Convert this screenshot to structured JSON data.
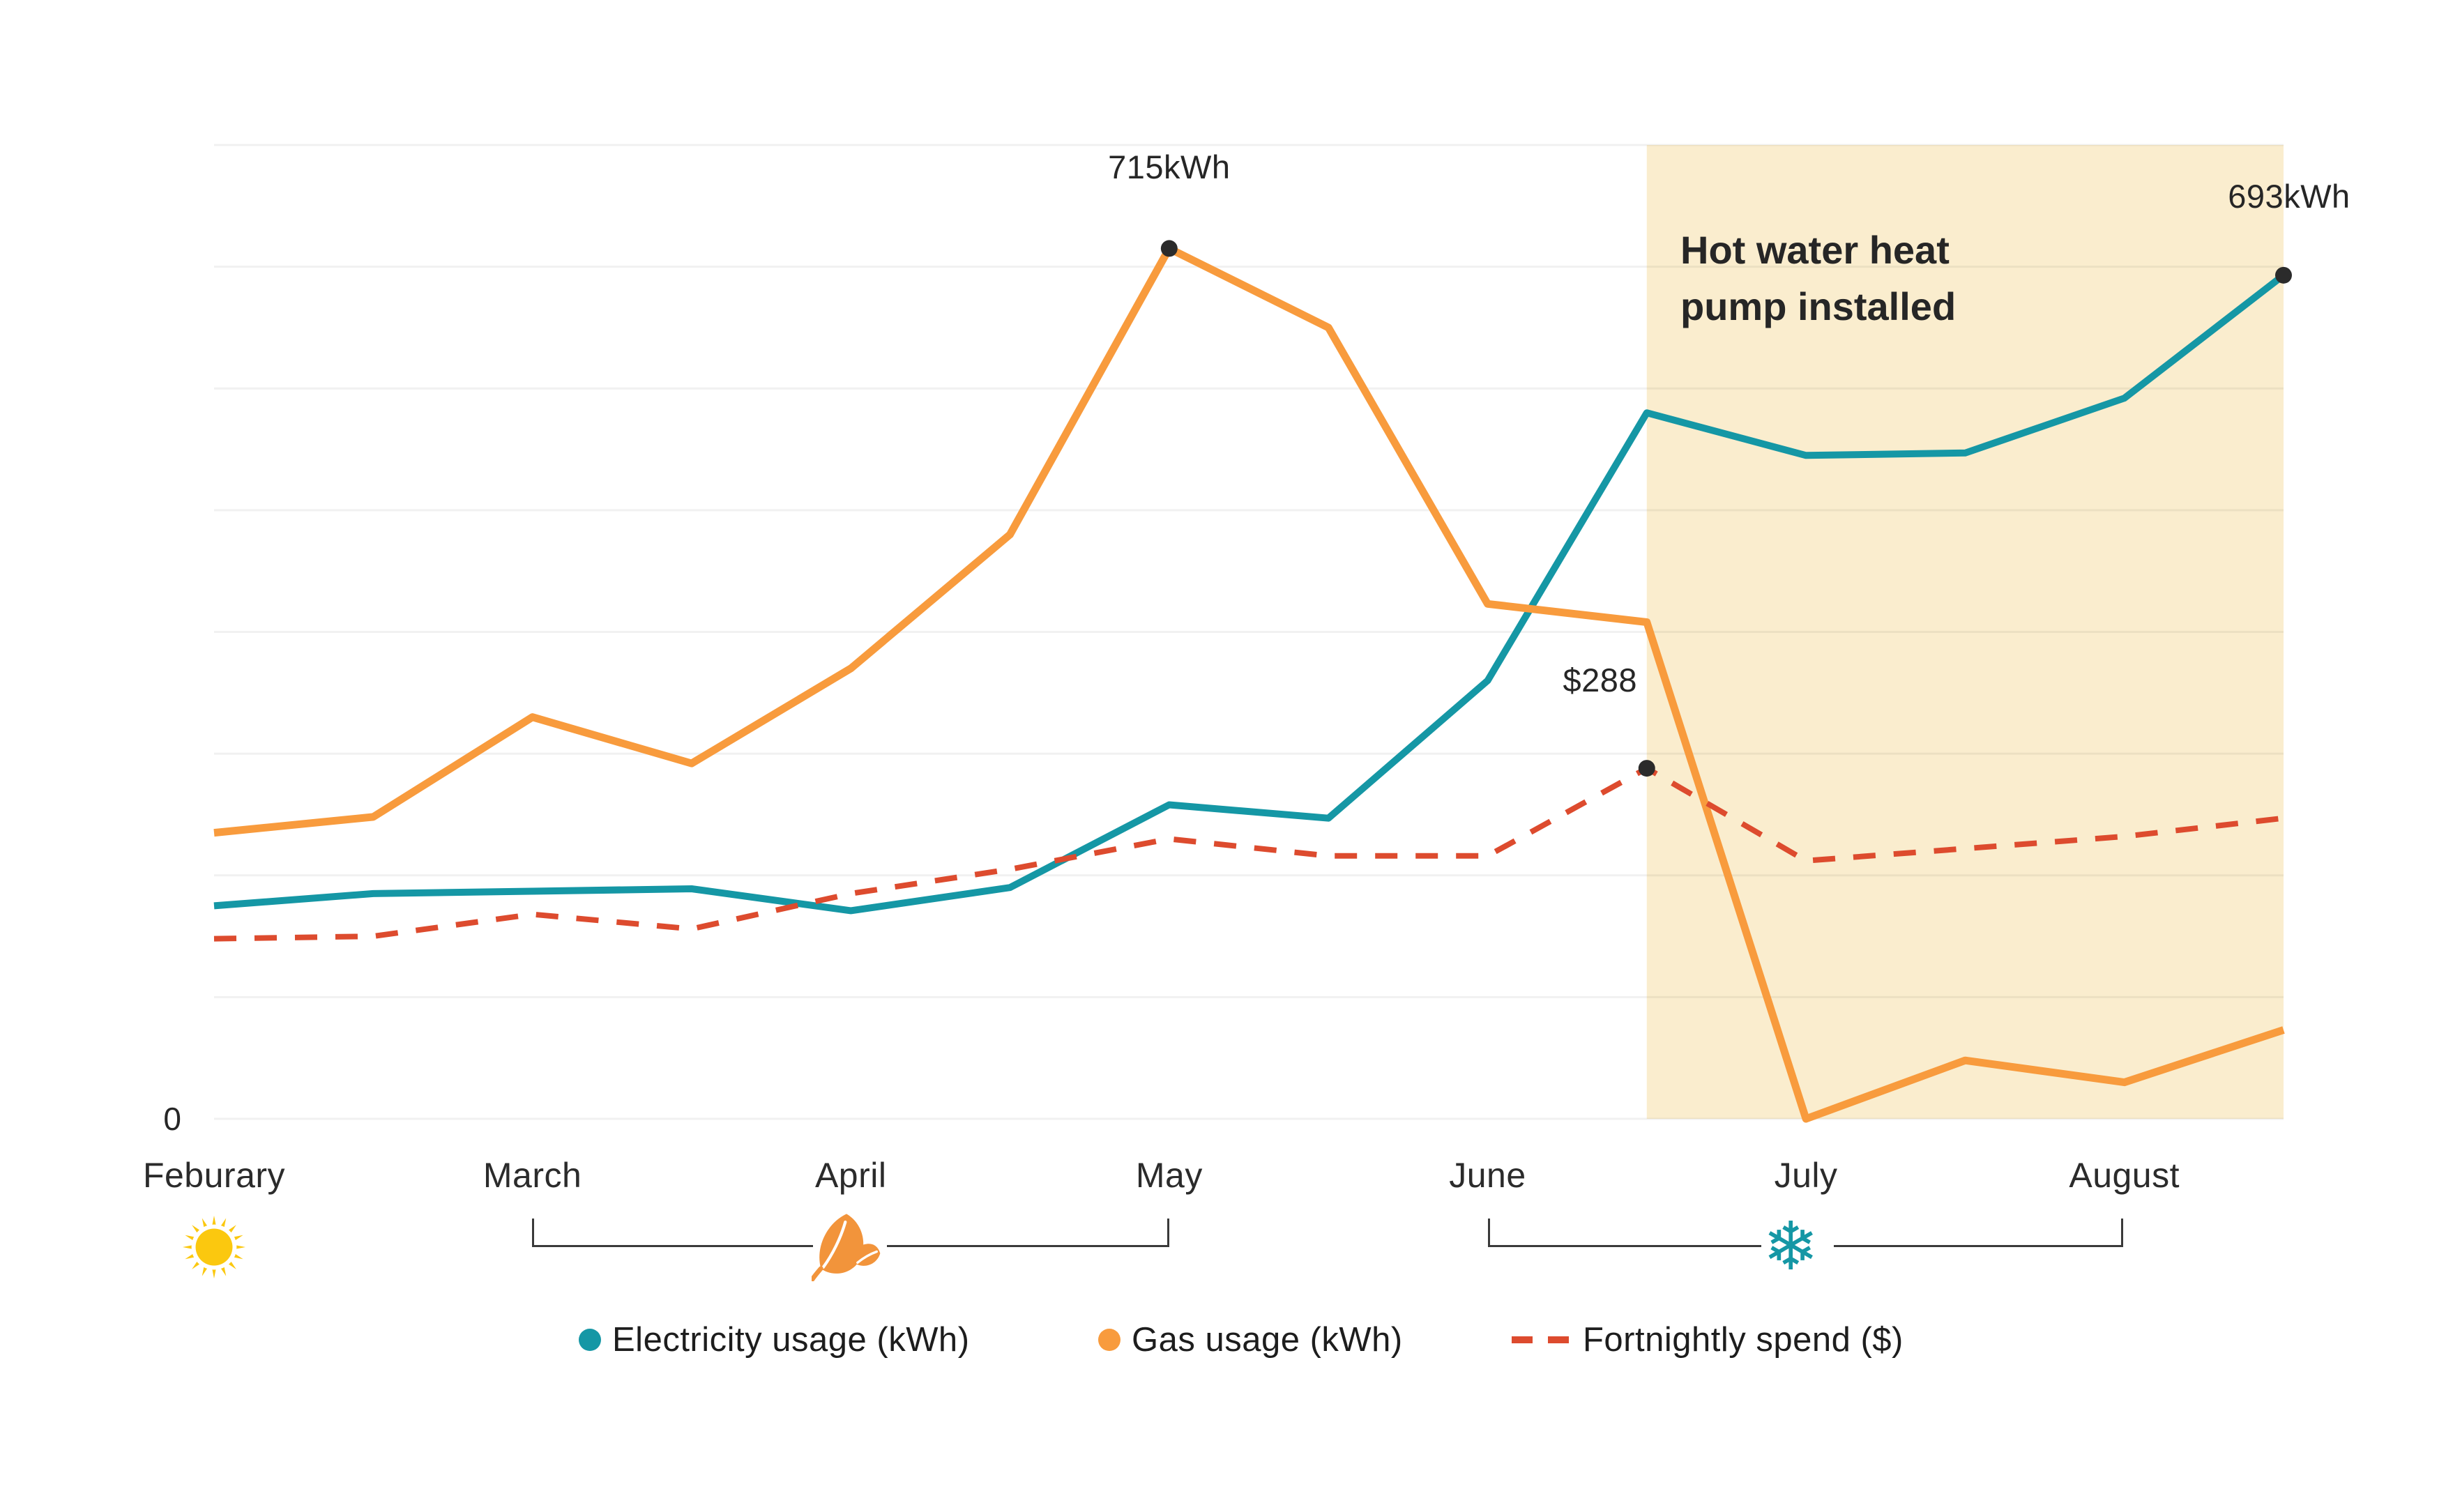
{
  "colors": {
    "electricity": "#1597A5",
    "gas": "#F89B3D",
    "spend": "#DD4B2E",
    "highlight_fill": "#FAEDCE",
    "gridline": "rgba(0,0,0,0.055)",
    "annotation_dot": "#2b2b2b",
    "sun_yellow": "#FBC80F",
    "leaf_orange": "#F2943B",
    "snowflake_teal": "#1597A5"
  },
  "annotations": {
    "y_zero_label": "0",
    "highlight_note_line1": "Hot water heat",
    "highlight_note_line2": "pump installed",
    "points": [
      {
        "text": "715kWh",
        "series": "Gas usage (kWh)",
        "point_index": 6,
        "value": 715
      },
      {
        "text": "$288",
        "series": "Fortnightly spend ($)",
        "point_index": 9,
        "value": 288
      },
      {
        "text": "693kWh",
        "series": "Electricity usage (kWh)",
        "point_index": 13,
        "value": 693
      }
    ]
  },
  "legend": [
    {
      "label": "Electricity usage (kWh)",
      "color": "#1597A5",
      "marker": "dot"
    },
    {
      "label": "Gas usage (kWh)",
      "color": "#F89B3D",
      "marker": "dot"
    },
    {
      "label": "Fortnightly spend ($)",
      "color": "#DD4B2E",
      "marker": "dashed-line"
    }
  ],
  "season_markers": [
    {
      "icon": "sun-icon",
      "at_month": "Feburary"
    },
    {
      "icon": "leaf-icon",
      "from_month": "March",
      "to_month": "May"
    },
    {
      "icon": "snowflake-icon",
      "from_month": "June",
      "to_month": "August"
    }
  ],
  "chart_data": {
    "type": "line",
    "title": "",
    "xlabel": "",
    "ylabel": "",
    "x_axis": {
      "months": [
        "Feburary",
        "March",
        "April",
        "May",
        "June",
        "July",
        "August"
      ],
      "points_per_month": 2,
      "note": "14 fortnightly data points from February to mid-August"
    },
    "ylim": [
      0,
      800
    ],
    "gridline_step": 100,
    "grid": true,
    "legend_position": "bottom",
    "highlight_region": {
      "label": "Hot water heat pump installed",
      "from_point": 9,
      "to_point": 13
    },
    "series": [
      {
        "name": "Electricity usage (kWh)",
        "style": "solid",
        "color": "#1597A5",
        "values": [
          175,
          185,
          187,
          189,
          171,
          190,
          258,
          247,
          360,
          580,
          545,
          547,
          592,
          693
        ]
      },
      {
        "name": "Gas usage (kWh)",
        "style": "solid",
        "color": "#F89B3D",
        "values": [
          235,
          248,
          330,
          292,
          370,
          480,
          715,
          650,
          423,
          408,
          0,
          48,
          30,
          73
        ]
      },
      {
        "name": "Fortnightly spend ($)",
        "style": "dashed",
        "color": "#DD4B2E",
        "values": [
          148,
          150,
          168,
          156,
          185,
          205,
          230,
          216,
          216,
          288,
          212,
          222,
          232,
          247
        ]
      }
    ]
  }
}
